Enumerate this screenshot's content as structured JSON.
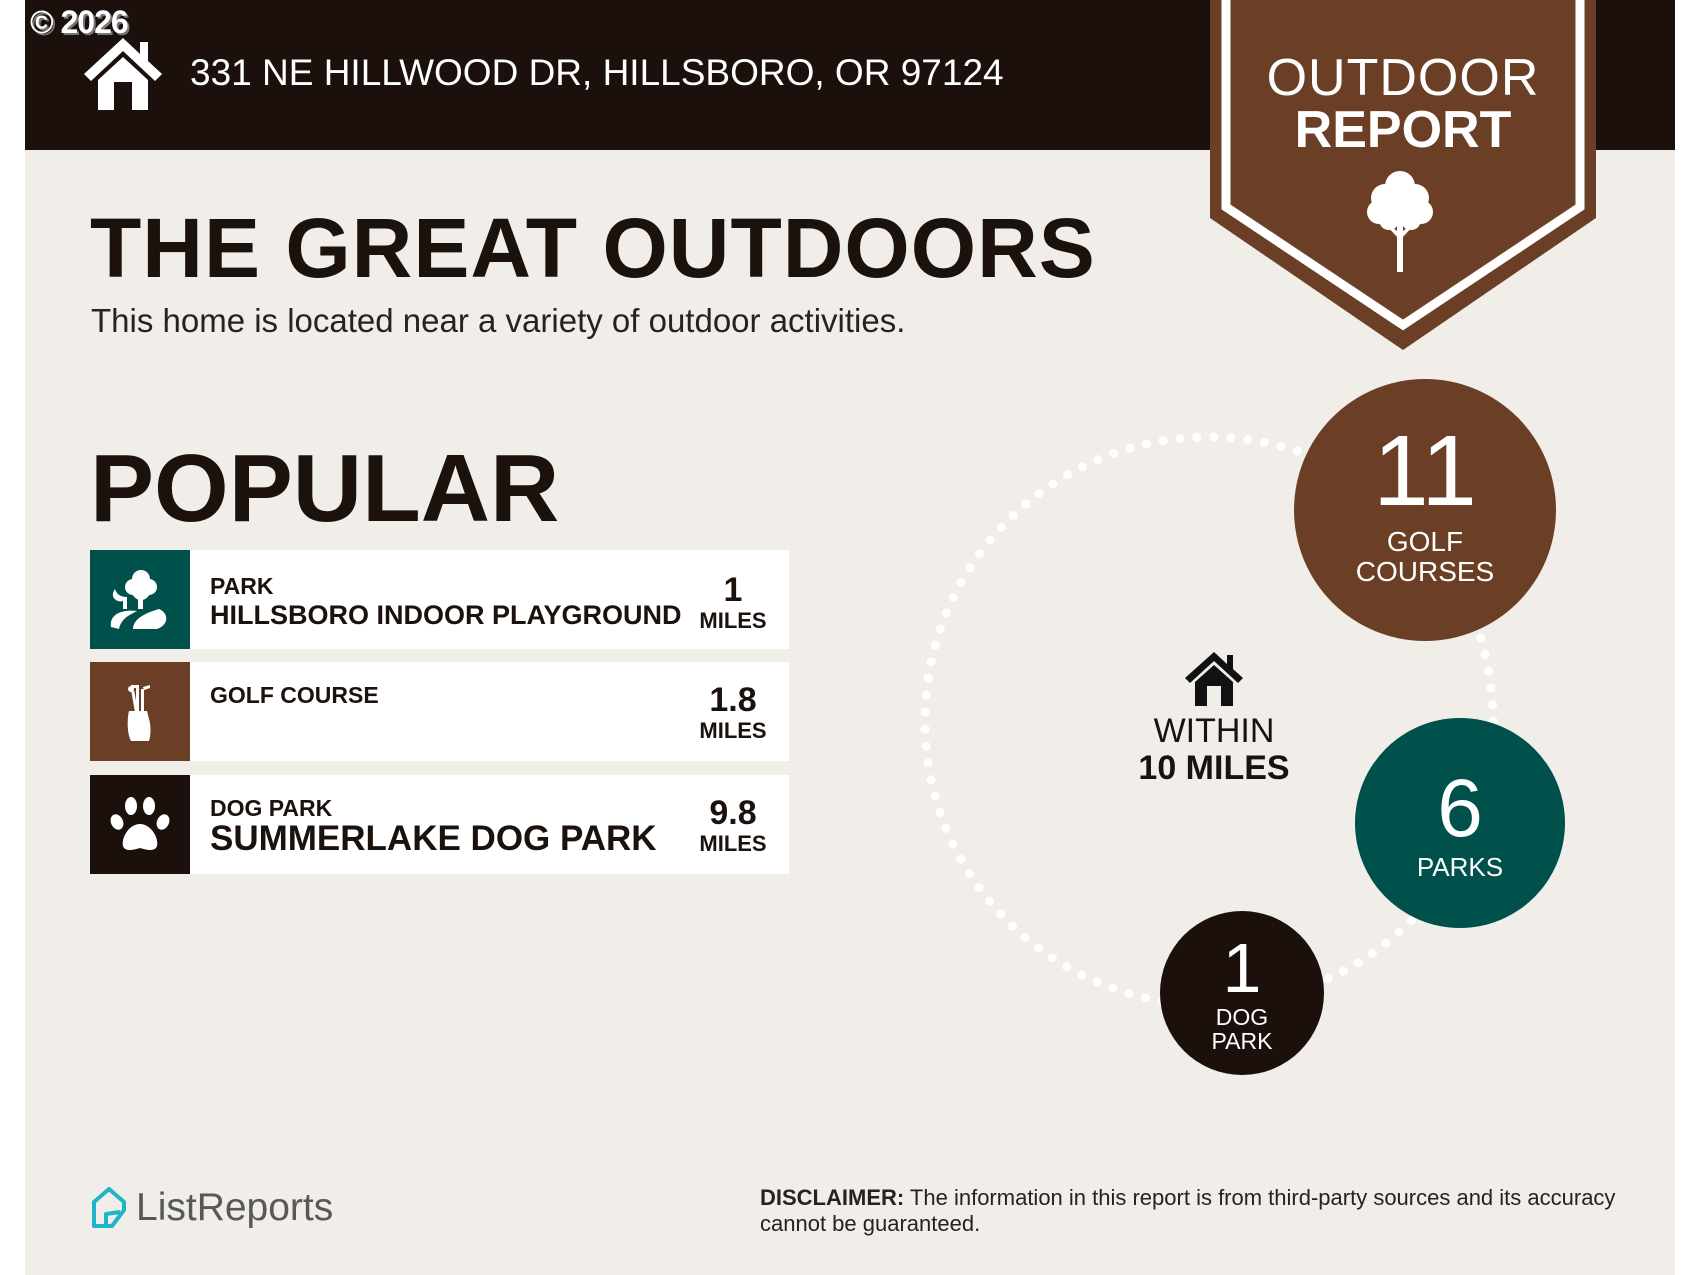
{
  "copyright": "© 2026",
  "header": {
    "address": "331 NE HILLWOOD DR, HILLSBORO, OR 97124",
    "icon": "home-icon"
  },
  "banner": {
    "line1": "OUTDOOR",
    "line2": "REPORT",
    "icon": "tree-icon"
  },
  "title": "THE GREAT OUTDOORS",
  "subtitle": "This home is located near a variety of outdoor activities.",
  "popular": {
    "heading": "POPULAR",
    "items": [
      {
        "category": "PARK",
        "name": "HILLSBORO INDOOR PLAYGROUND",
        "distance": "1",
        "unit": "MILES",
        "icon": "park-icon",
        "color": "#00504b"
      },
      {
        "category": "GOLF COURSE",
        "name": "",
        "distance": "1.8",
        "unit": "MILES",
        "icon": "golf-bag-icon",
        "color": "#6b3f26"
      },
      {
        "category": "DOG PARK",
        "name": "SUMMERLAKE DOG PARK",
        "distance": "9.8",
        "unit": "MILES",
        "icon": "paw-icon",
        "color": "#1b100c"
      }
    ]
  },
  "summary": {
    "within_line1": "WITHIN",
    "within_line2": "10 MILES",
    "counts": [
      {
        "value": "11",
        "label1": "GOLF",
        "label2": "COURSES",
        "color": "#6b3f26"
      },
      {
        "value": "6",
        "label1": "PARKS",
        "label2": "",
        "color": "#00504b"
      },
      {
        "value": "1",
        "label1": "DOG",
        "label2": "PARK",
        "color": "#1b100c"
      }
    ]
  },
  "footer": {
    "logo": "ListReports",
    "disclaimer_label": "DISCLAIMER:",
    "disclaimer_text": " The information in this report is from third-party sources and its accuracy cannot be guaranteed."
  },
  "colors": {
    "dark": "#1b100c",
    "brown": "#6b3f26",
    "teal": "#00504b",
    "background": "#f1ede9",
    "logo_accent": "#1fb5c6"
  }
}
